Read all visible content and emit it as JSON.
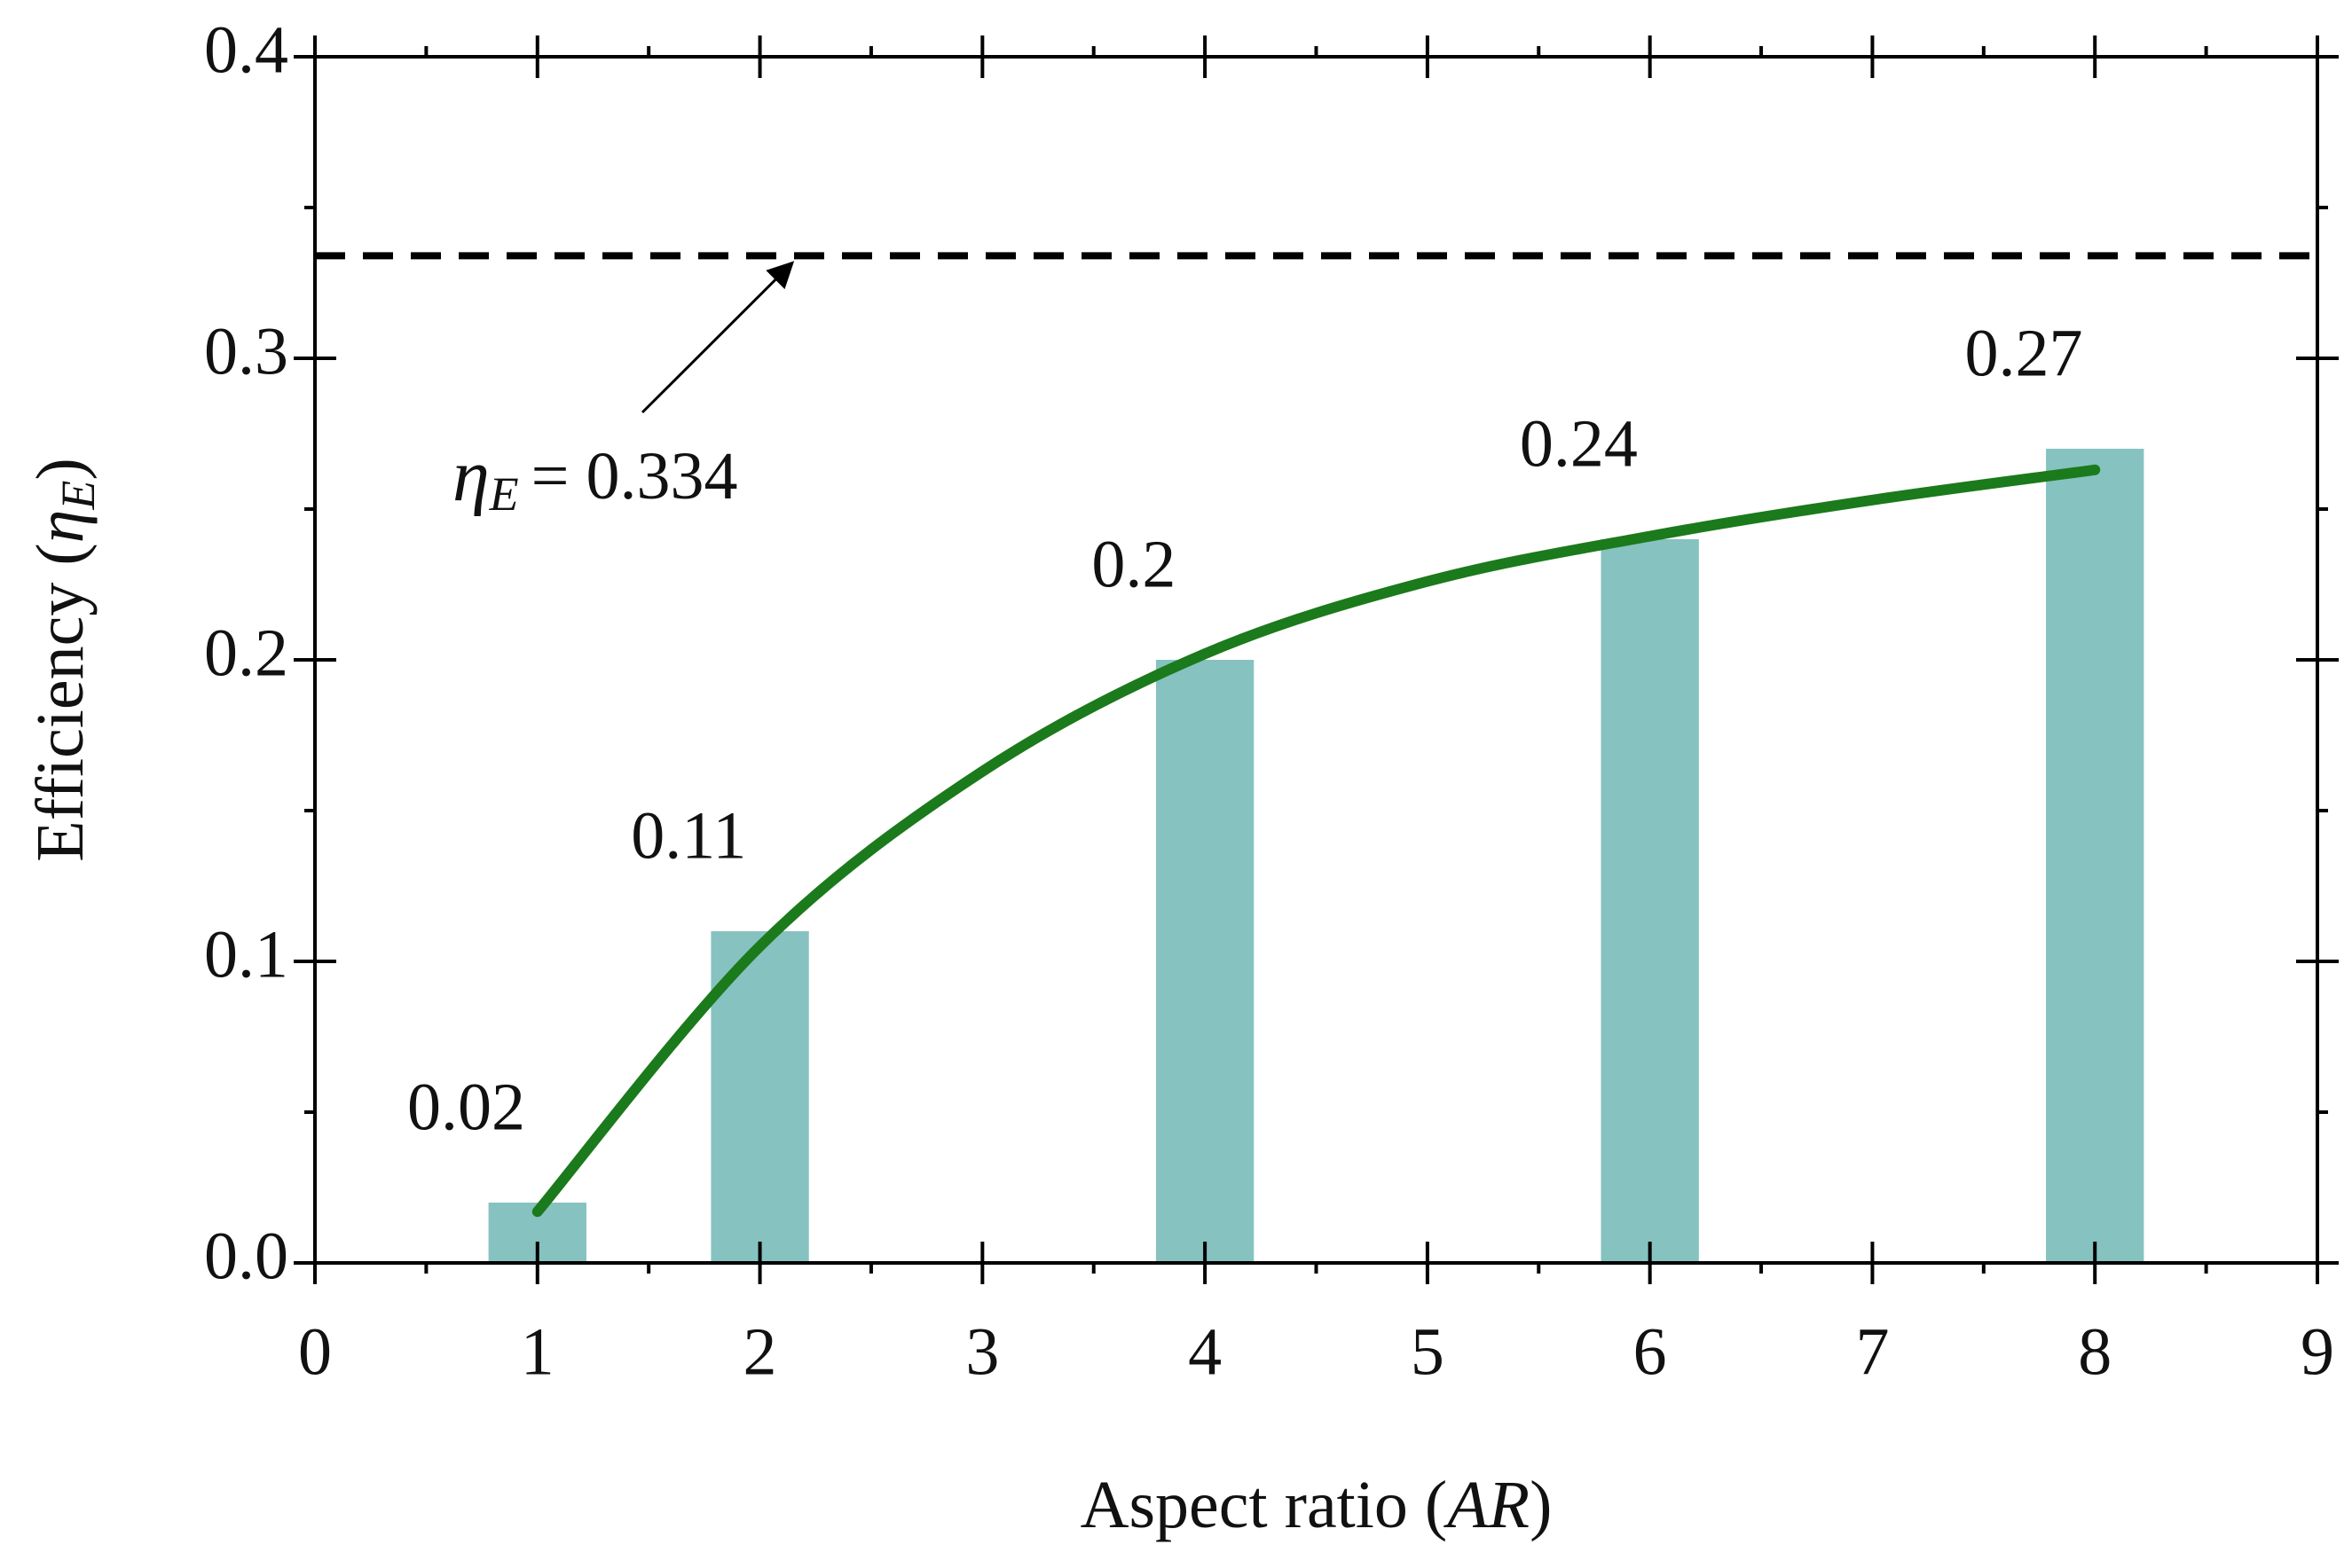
{
  "chart_data": {
    "type": "bar",
    "x": [
      1,
      2,
      4,
      6,
      8
    ],
    "values": [
      0.02,
      0.11,
      0.2,
      0.24,
      0.27
    ],
    "color": "#86c2c0",
    "label_color": "#2a7d1c",
    "fit": {
      "x": [
        1,
        2,
        3,
        4,
        5,
        6,
        7,
        8
      ],
      "values": [
        0.017,
        0.105,
        0.163,
        0.202,
        0.226,
        0.241,
        0.253,
        0.263
      ],
      "color": "#1b7a1b"
    },
    "reference_line": {
      "value": 0.334,
      "color": "#000000",
      "style": "dashed"
    },
    "annotation": {
      "symbol": "η",
      "subscript": "E",
      "text": "= 0.334"
    },
    "xlabel": {
      "text": "Aspect ratio (",
      "italic": "AR",
      "close": ")"
    },
    "ylabel": {
      "text": "Efficiency (",
      "symbol": "η",
      "subscript": "E",
      "close": ")"
    },
    "xlim": [
      0,
      9
    ],
    "xticks": [
      0,
      1,
      2,
      3,
      4,
      5,
      6,
      7,
      8,
      9
    ],
    "ylim": [
      0,
      0.4
    ],
    "yticks": [
      {
        "value": 0,
        "label": "0.0"
      },
      0.1,
      0.2,
      0.3,
      0.4
    ]
  }
}
